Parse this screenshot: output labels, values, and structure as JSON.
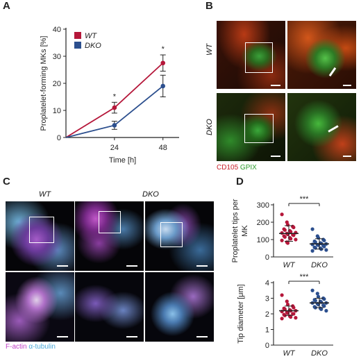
{
  "panels": {
    "a": "A",
    "b": "B",
    "c": "C",
    "d": "D"
  },
  "panel_b": {
    "row_labels": [
      "WT",
      "DKO"
    ],
    "stain_red": "CD105",
    "stain_green": "GPIX"
  },
  "panel_c": {
    "col_labels": [
      "WT",
      "DKO"
    ],
    "stain_pink": "F-actin",
    "stain_cyan": "α-tubulin"
  },
  "colors": {
    "wt": "#b5173a",
    "dko": "#2c4f8e"
  },
  "chart_data": [
    {
      "type": "line",
      "panel": "A",
      "x": [
        0,
        24,
        48
      ],
      "xticks": [
        "24",
        "48"
      ],
      "xlabel": "Time [h]",
      "ylabel": "Proplatelet-forming MKs [%]",
      "ylim": [
        0,
        40
      ],
      "yticks": [
        0,
        10,
        20,
        30,
        40
      ],
      "legend": "top-left",
      "annotations": [
        "*",
        "*"
      ],
      "series": [
        {
          "name": "WT",
          "values": [
            0,
            11,
            27.5
          ],
          "err": [
            0,
            2,
            3
          ]
        },
        {
          "name": "DKO",
          "values": [
            0,
            4.5,
            19
          ],
          "err": [
            0,
            1.5,
            4
          ]
        }
      ]
    },
    {
      "type": "scatter",
      "panel": "D",
      "categories": [
        "WT",
        "DKO"
      ],
      "ylabel": "Proplatelet tips per MK",
      "ylim": [
        0,
        300
      ],
      "yticks": [
        0,
        100,
        200,
        300
      ],
      "significance": "***",
      "series": [
        {
          "name": "WT",
          "mean": 135,
          "sd": 45,
          "values": [
            245,
            200,
            185,
            175,
            170,
            160,
            155,
            150,
            145,
            140,
            138,
            135,
            130,
            128,
            125,
            120,
            115,
            110,
            105,
            100,
            95,
            85,
            80
          ]
        },
        {
          "name": "DKO",
          "mean": 75,
          "sd": 30,
          "values": [
            160,
            120,
            110,
            100,
            95,
            90,
            85,
            80,
            78,
            75,
            72,
            70,
            68,
            65,
            60,
            55,
            52,
            50,
            45,
            40,
            35
          ]
        }
      ]
    },
    {
      "type": "scatter",
      "panel": "D",
      "categories": [
        "WT",
        "DKO"
      ],
      "ylabel": "Tip diameter [μm]",
      "ylim": [
        0,
        4
      ],
      "yticks": [
        0,
        1,
        2,
        3,
        4
      ],
      "significance": "***",
      "series": [
        {
          "name": "WT",
          "mean": 2.2,
          "sd": 0.3,
          "values": [
            3.2,
            2.8,
            2.6,
            2.5,
            2.4,
            2.35,
            2.3,
            2.25,
            2.2,
            2.2,
            2.15,
            2.1,
            2.05,
            2.0,
            2.0,
            1.95,
            1.9,
            1.85,
            1.8,
            1.75,
            1.7
          ]
        },
        {
          "name": "DKO",
          "mean": 2.7,
          "sd": 0.3,
          "values": [
            3.5,
            3.3,
            3.1,
            3.0,
            2.95,
            2.9,
            2.85,
            2.8,
            2.75,
            2.7,
            2.7,
            2.65,
            2.6,
            2.55,
            2.5,
            2.45,
            2.4,
            2.35,
            2.3,
            2.2
          ]
        }
      ]
    }
  ]
}
